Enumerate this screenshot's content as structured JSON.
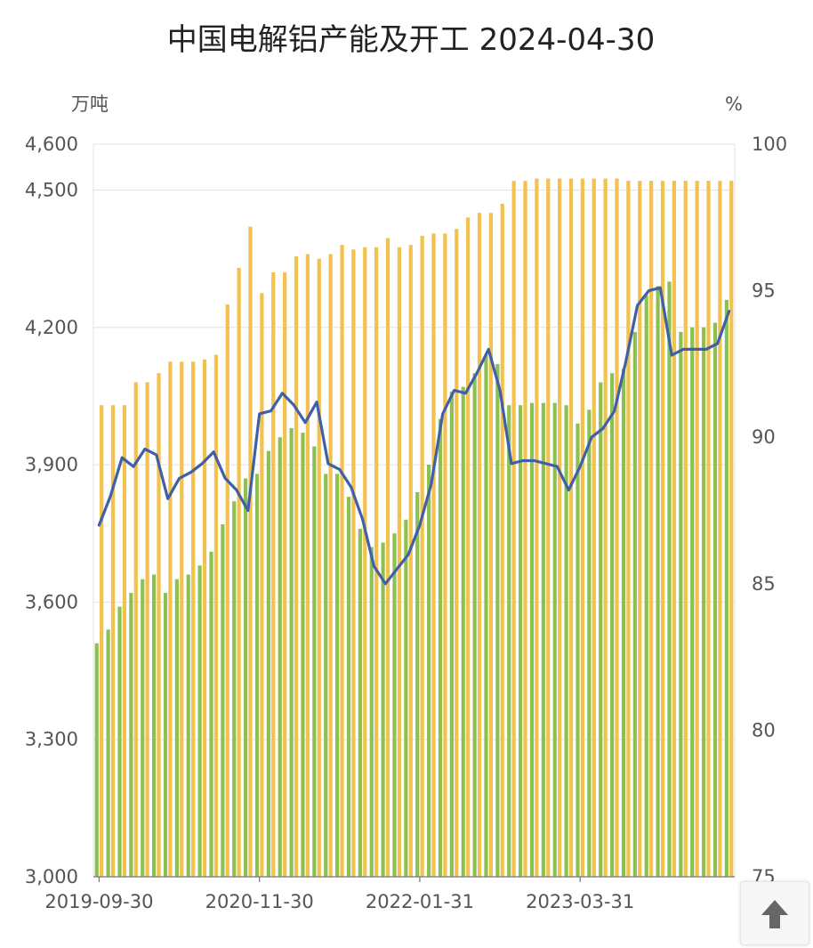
{
  "chart_data": {
    "type": "bar",
    "title": "中国电解铝产能及开工 2024-04-30",
    "y_left_unit": "万吨",
    "y_right_unit": "%",
    "y_left_range": [
      3000,
      4600
    ],
    "y_right_range": [
      75,
      100
    ],
    "y_left_ticks": [
      "3,000",
      "3,300",
      "3,600",
      "3,900",
      "4,200",
      "4,500",
      "4,600"
    ],
    "y_right_ticks": [
      "75",
      "80",
      "85",
      "90",
      "95",
      "100"
    ],
    "x_tick_labels": [
      "2019-09-30",
      "2020-11-30",
      "2022-01-31",
      "2023-03-31"
    ],
    "x_tick_index": [
      0,
      14,
      28,
      42
    ],
    "colors": {
      "capacity": "#f2c14e",
      "production": "#8cc152",
      "rate": "#3f5fa8"
    },
    "series": [
      {
        "type": "bar",
        "values": [
          4030,
          4030,
          4030,
          4080,
          4080,
          4100,
          4125,
          4125,
          4125,
          4130,
          4140,
          4250,
          4330,
          4420,
          4275,
          4320,
          4320,
          4355,
          4360,
          4350,
          4360,
          4380,
          4370,
          4375,
          4375,
          4395,
          4375,
          4380,
          4400,
          4405,
          4405,
          4415,
          4440,
          4450,
          4450,
          4470,
          4520,
          4520,
          4525,
          4525,
          4525,
          4525,
          4525,
          4525,
          4525,
          4525,
          4520,
          4520,
          4520,
          4520,
          4520,
          4520,
          4520,
          4520,
          4520,
          4520
        ]
      },
      {
        "type": "bar",
        "values": [
          3510,
          3540,
          3590,
          3620,
          3650,
          3660,
          3620,
          3650,
          3660,
          3680,
          3710,
          3770,
          3820,
          3870,
          3880,
          3930,
          3960,
          3980,
          3970,
          3940,
          3880,
          3880,
          3830,
          3760,
          3720,
          3730,
          3750,
          3780,
          3840,
          3900,
          4000,
          4060,
          4070,
          4100,
          4140,
          4120,
          4030,
          4030,
          4035,
          4035,
          4035,
          4030,
          3990,
          4020,
          4080,
          4100,
          4110,
          4190,
          4270,
          4290,
          4300,
          4190,
          4200,
          4200,
          4210,
          4260
        ]
      },
      {
        "type": "line",
        "values": [
          87.0,
          88.0,
          89.3,
          89.0,
          89.6,
          89.4,
          87.9,
          88.6,
          88.8,
          89.1,
          89.5,
          88.6,
          88.2,
          87.5,
          90.8,
          90.9,
          91.5,
          91.1,
          90.5,
          91.2,
          89.1,
          88.9,
          88.3,
          87.2,
          85.6,
          85.0,
          85.5,
          86.0,
          87.0,
          88.4,
          90.8,
          91.6,
          91.5,
          92.2,
          93.0,
          91.6,
          89.1,
          89.2,
          89.2,
          89.1,
          89.0,
          88.2,
          89.0,
          90.0,
          90.3,
          90.9,
          92.6,
          94.5,
          95.0,
          95.1,
          92.8,
          93.0,
          93.0,
          93.0,
          93.2,
          94.3
        ]
      }
    ]
  }
}
